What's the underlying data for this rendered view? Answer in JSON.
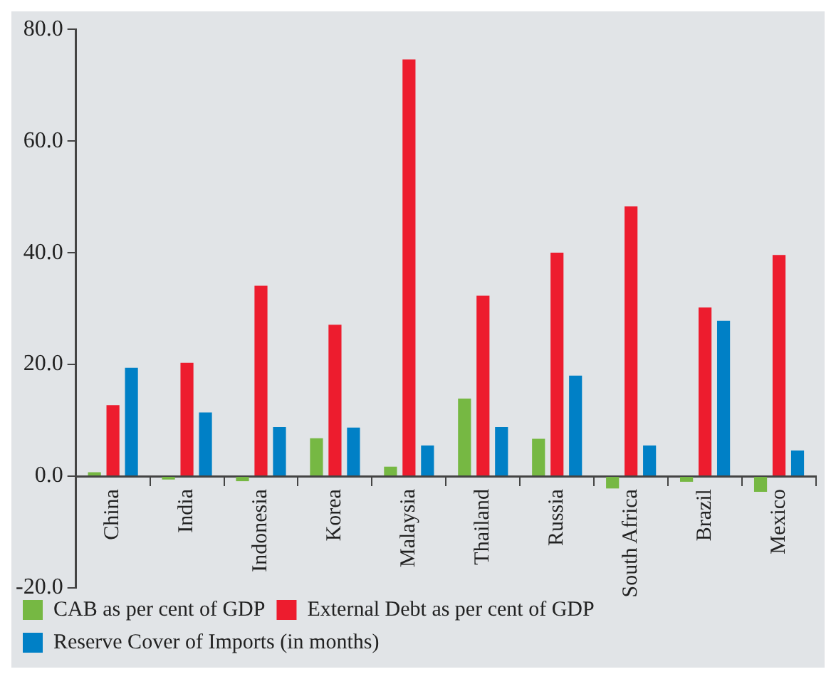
{
  "chart_data": {
    "type": "bar",
    "categories": [
      "China",
      "India",
      "Indonesia",
      "Korea",
      "Malaysia",
      "Thailand",
      "Russia",
      "South Africa",
      "Brazil",
      "Mexico"
    ],
    "series": [
      {
        "name": "CAB as per cent of GDP",
        "color": "#76b843",
        "values": [
          0.7,
          -0.6,
          -0.9,
          6.8,
          1.7,
          13.9,
          6.7,
          -2.2,
          -1.0,
          -2.8
        ]
      },
      {
        "name": "External Debt as per cent of GDP",
        "color": "#ed1c2e",
        "values": [
          12.7,
          20.3,
          34.1,
          27.1,
          74.6,
          32.3,
          40.0,
          48.3,
          30.2,
          39.6
        ]
      },
      {
        "name": "Reserve Cover of Imports (in months)",
        "color": "#0080c6",
        "values": [
          19.4,
          11.4,
          8.8,
          8.7,
          5.5,
          8.8,
          18.0,
          5.5,
          27.8,
          4.6
        ]
      }
    ],
    "ylim": [
      -20,
      80
    ],
    "yticks": [
      {
        "value": -20,
        "label": "-20.0"
      },
      {
        "value": 0,
        "label": "0.0"
      },
      {
        "value": 20,
        "label": "20.0"
      },
      {
        "value": 40,
        "label": "40.0"
      },
      {
        "value": 60,
        "label": "60.0"
      },
      {
        "value": 80,
        "label": "80.0"
      }
    ],
    "grid": false,
    "legend": "bottom"
  }
}
